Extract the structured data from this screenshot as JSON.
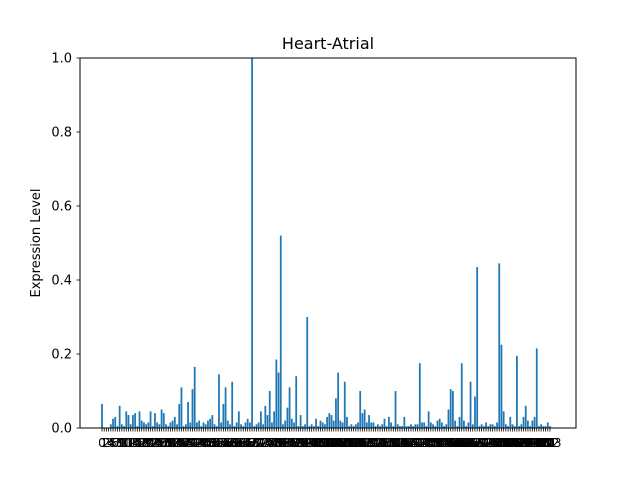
{
  "chart_data": {
    "type": "bar",
    "title": "Heart-Atrial",
    "xlabel": "",
    "ylabel": "Expression Level",
    "ylim": [
      0,
      1.0
    ],
    "yticks": [
      "0.0",
      "0.2",
      "0.4",
      "0.6",
      "0.8",
      "1.0"
    ],
    "xticks_note": "dense overlapping category tick labels",
    "bar_color": "#1f77b4",
    "grid": false,
    "legend": "none",
    "values": [
      0.065,
      0.0,
      0.0,
      0.0,
      0.01,
      0.025,
      0.03,
      0.005,
      0.06,
      0.01,
      0.005,
      0.045,
      0.035,
      0.01,
      0.035,
      0.04,
      0.005,
      0.045,
      0.02,
      0.015,
      0.01,
      0.015,
      0.045,
      0.005,
      0.04,
      0.015,
      0.01,
      0.05,
      0.04,
      0.01,
      0.005,
      0.015,
      0.02,
      0.03,
      0.01,
      0.065,
      0.11,
      0.005,
      0.01,
      0.07,
      0.015,
      0.105,
      0.165,
      0.015,
      0.02,
      0.005,
      0.015,
      0.01,
      0.02,
      0.025,
      0.035,
      0.01,
      0.005,
      0.145,
      0.015,
      0.065,
      0.11,
      0.02,
      0.01,
      0.125,
      0.005,
      0.015,
      0.045,
      0.01,
      0.005,
      0.015,
      0.025,
      0.015,
      1.0,
      0.005,
      0.01,
      0.015,
      0.045,
      0.01,
      0.06,
      0.035,
      0.1,
      0.015,
      0.045,
      0.185,
      0.15,
      0.52,
      0.01,
      0.02,
      0.055,
      0.11,
      0.025,
      0.015,
      0.14,
      0.005,
      0.035,
      0.005,
      0.01,
      0.3,
      0.005,
      0.01,
      0.005,
      0.025,
      0.005,
      0.02,
      0.015,
      0.01,
      0.03,
      0.04,
      0.035,
      0.02,
      0.08,
      0.15,
      0.02,
      0.015,
      0.125,
      0.03,
      0.005,
      0.01,
      0.005,
      0.01,
      0.015,
      0.1,
      0.04,
      0.05,
      0.015,
      0.035,
      0.015,
      0.015,
      0.005,
      0.01,
      0.005,
      0.01,
      0.025,
      0.005,
      0.03,
      0.015,
      0.005,
      0.1,
      0.01,
      0.005,
      0.005,
      0.03,
      0.005,
      0.005,
      0.01,
      0.005,
      0.01,
      0.01,
      0.175,
      0.015,
      0.015,
      0.005,
      0.045,
      0.015,
      0.01,
      0.005,
      0.02,
      0.025,
      0.015,
      0.005,
      0.01,
      0.05,
      0.105,
      0.1,
      0.02,
      0.005,
      0.03,
      0.175,
      0.02,
      0.005,
      0.015,
      0.125,
      0.01,
      0.085,
      0.435,
      0.005,
      0.01,
      0.005,
      0.015,
      0.005,
      0.01,
      0.01,
      0.005,
      0.015,
      0.445,
      0.225,
      0.045,
      0.01,
      0.005,
      0.03,
      0.01,
      0.005,
      0.195,
      0.005,
      0.01,
      0.03,
      0.06,
      0.02,
      0.005,
      0.02,
      0.03,
      0.215,
      0.005,
      0.01,
      0.005,
      0.005,
      0.015,
      0.005
    ]
  }
}
